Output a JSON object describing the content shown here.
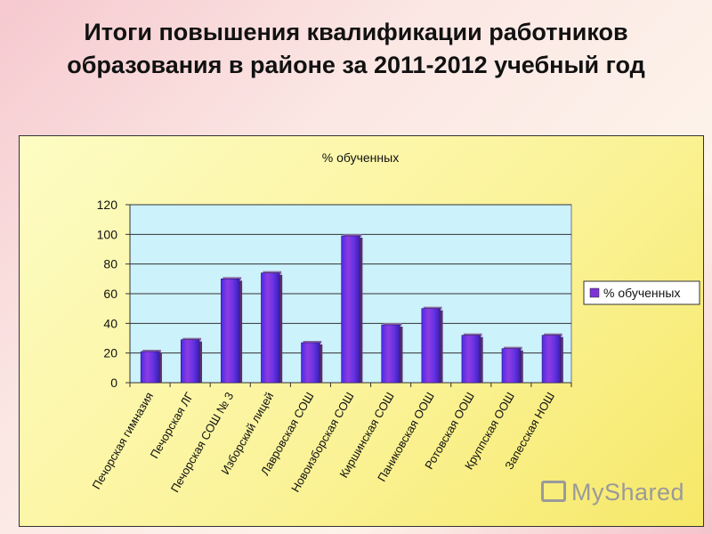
{
  "slide_title": "Итоги повышения квалификации работников образования в районе за 2011-2012 учебный год",
  "watermark": "MyShared",
  "colors": {
    "plot_bg": "#ccf2fb",
    "bar_fill": "#7c33d6",
    "bar_highlight": "#5b2cff",
    "bar_shadow": "#6b3a8c"
  },
  "chart_data": {
    "type": "bar",
    "title": "% обученных",
    "categories": [
      "Печорская гимназия",
      "Печорская ЛГ",
      "Печорская СОШ № 3",
      "Изборский лицей",
      "Лавровская СОШ",
      "Новоизборская СОШ",
      "Киршинская СОШ",
      "Паниковская ООШ",
      "Ротовская ООШ",
      "Круппская ООШ",
      "Запесская НОШ"
    ],
    "series": [
      {
        "name": "% обученных",
        "values": [
          21,
          29,
          70,
          74,
          27,
          99,
          39,
          50,
          32,
          23,
          32
        ]
      }
    ],
    "ylim": [
      0,
      120
    ],
    "yticks": [
      0,
      20,
      40,
      60,
      80,
      100,
      120
    ],
    "legend_position": "right",
    "grid": true
  }
}
